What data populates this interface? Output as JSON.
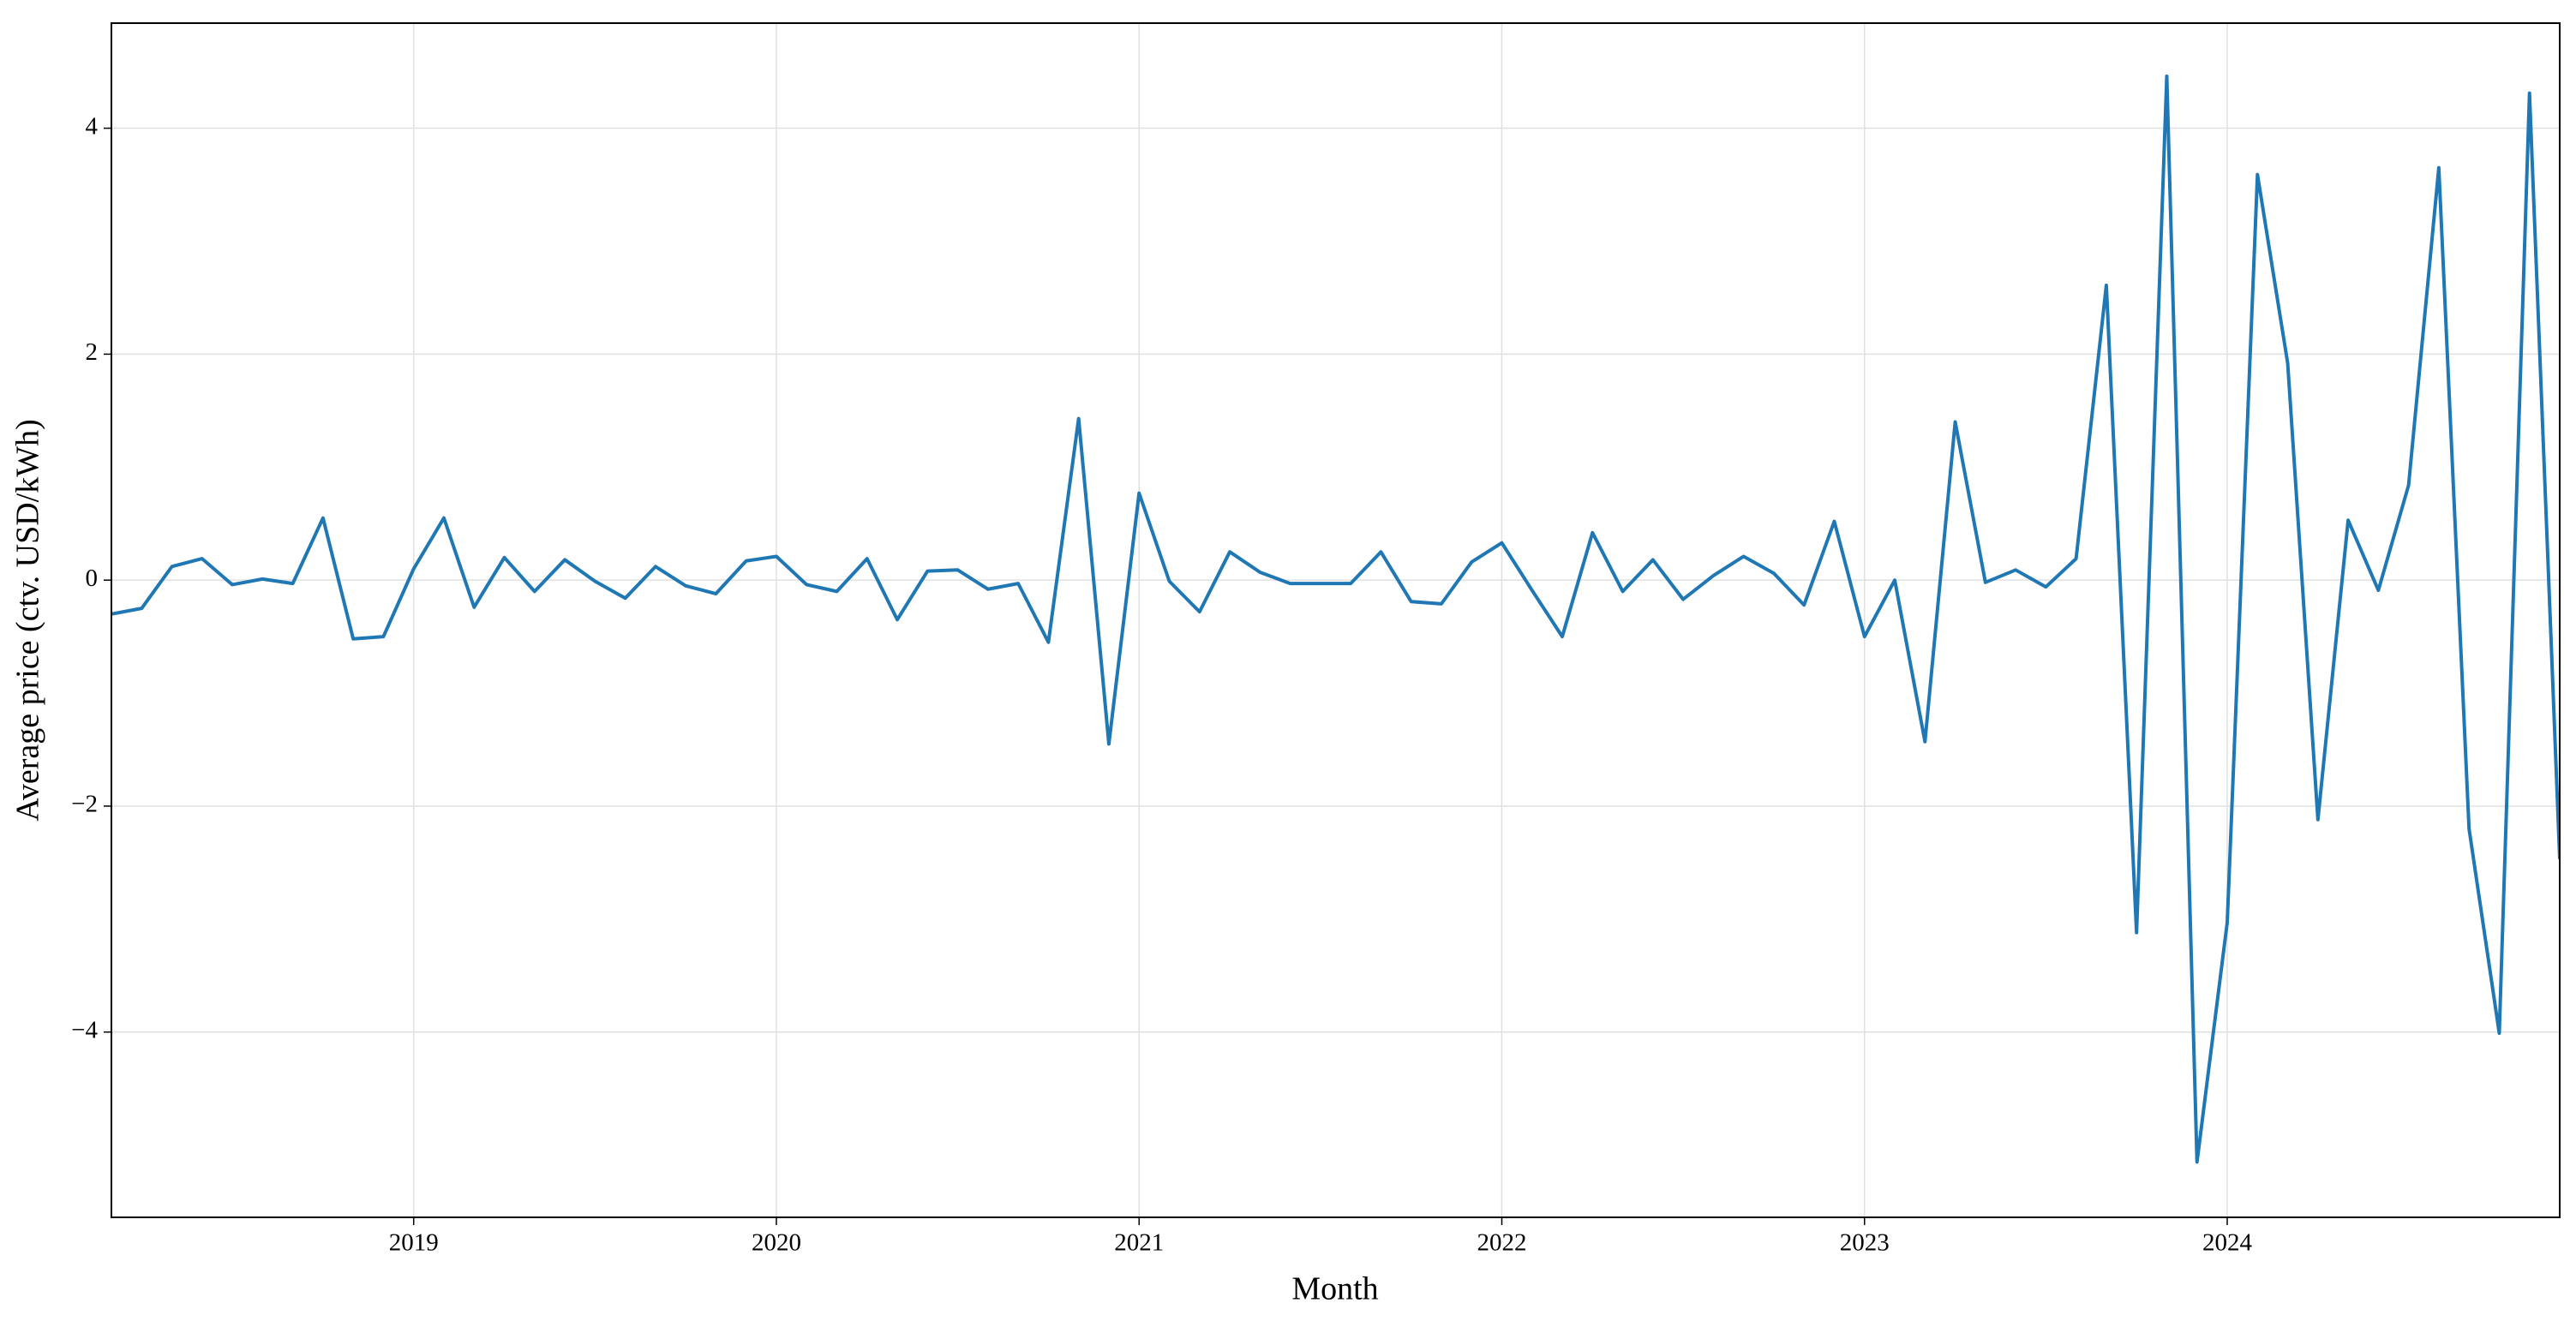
{
  "chart_data": {
    "type": "line",
    "xlabel": "Month",
    "ylabel": "Average price (ctv. USD/kWh)",
    "x": [
      "2018-03",
      "2018-04",
      "2018-05",
      "2018-06",
      "2018-07",
      "2018-08",
      "2018-09",
      "2018-10",
      "2018-11",
      "2018-12",
      "2019-01",
      "2019-02",
      "2019-03",
      "2019-04",
      "2019-05",
      "2019-06",
      "2019-07",
      "2019-08",
      "2019-09",
      "2019-10",
      "2019-11",
      "2019-12",
      "2020-01",
      "2020-02",
      "2020-03",
      "2020-04",
      "2020-05",
      "2020-06",
      "2020-07",
      "2020-08",
      "2020-09",
      "2020-10",
      "2020-11",
      "2020-12",
      "2021-01",
      "2021-02",
      "2021-03",
      "2021-04",
      "2021-05",
      "2021-06",
      "2021-07",
      "2021-08",
      "2021-09",
      "2021-10",
      "2021-11",
      "2021-12",
      "2022-01",
      "2022-02",
      "2022-03",
      "2022-04",
      "2022-05",
      "2022-06",
      "2022-07",
      "2022-08",
      "2022-09",
      "2022-10",
      "2022-11",
      "2022-12",
      "2023-01",
      "2023-02",
      "2023-03",
      "2023-04",
      "2023-05",
      "2023-06",
      "2023-07",
      "2023-08",
      "2023-09",
      "2023-10",
      "2023-11",
      "2023-12",
      "2024-01",
      "2024-02",
      "2024-03",
      "2024-04",
      "2024-05",
      "2024-06",
      "2024-07",
      "2024-08",
      "2024-09",
      "2024-10",
      "2024-11",
      "2024-12"
    ],
    "series": [
      {
        "name": "Average price",
        "color": "#1f77b4",
        "values": [
          -0.3,
          -0.25,
          0.12,
          0.19,
          -0.04,
          0.01,
          -0.03,
          0.55,
          -0.52,
          -0.5,
          0.1,
          0.55,
          -0.24,
          0.2,
          -0.1,
          0.18,
          -0.01,
          -0.16,
          0.12,
          -0.05,
          -0.12,
          0.17,
          0.21,
          -0.04,
          -0.1,
          0.19,
          -0.35,
          0.08,
          0.09,
          -0.08,
          -0.03,
          -0.55,
          1.43,
          -1.45,
          0.77,
          -0.01,
          -0.28,
          0.25,
          0.07,
          -0.03,
          -0.03,
          -0.03,
          0.25,
          -0.19,
          -0.21,
          0.16,
          0.33,
          -0.09,
          -0.5,
          0.42,
          -0.1,
          0.18,
          -0.17,
          0.04,
          0.21,
          0.06,
          -0.22,
          0.52,
          -0.5,
          0.0,
          -1.43,
          1.4,
          -0.02,
          0.09,
          -0.06,
          0.19,
          2.61,
          -3.12,
          4.46,
          -5.15,
          -3.03,
          3.59,
          1.92,
          -2.12,
          0.53,
          -0.09,
          0.84,
          3.65,
          -2.2,
          -4.01,
          4.31,
          -2.47
        ]
      }
    ],
    "xlim": [
      "2018-03",
      "2024-12"
    ],
    "xticks": [
      "2019",
      "2020",
      "2021",
      "2022",
      "2023",
      "2024"
    ],
    "ylim": [
      -5.64,
      4.93
    ],
    "yticks": [
      {
        "value": -4,
        "label": "−4"
      },
      {
        "value": -2,
        "label": "−2"
      },
      0,
      2,
      4
    ],
    "grid": true
  }
}
